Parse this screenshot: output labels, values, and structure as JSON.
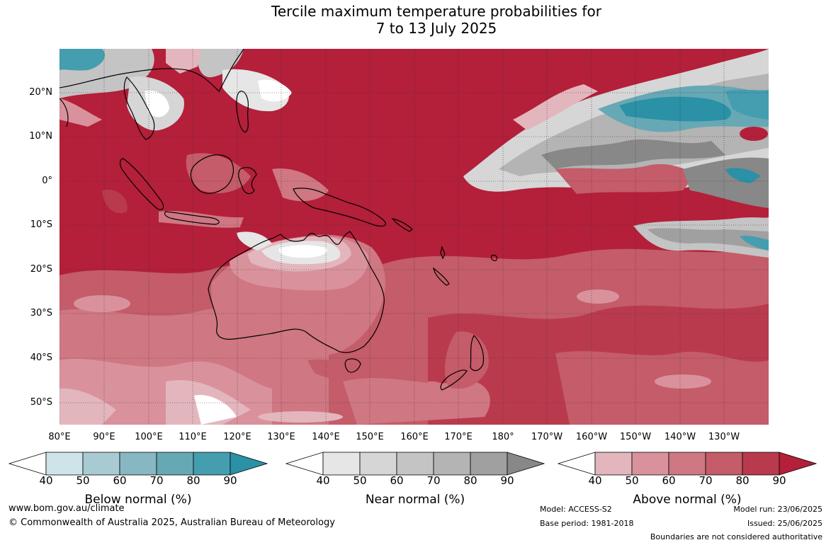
{
  "title_line1": "Tercile maximum temperature probabilities for",
  "title_line2": "7 to 13 July 2025",
  "lat_labels": [
    "20°N",
    "10°N",
    "0°",
    "10°S",
    "20°S",
    "30°S",
    "40°S",
    "50°S"
  ],
  "lon_labels": [
    "80°E",
    "90°E",
    "100°E",
    "110°E",
    "120°E",
    "130°E",
    "140°E",
    "150°E",
    "160°E",
    "170°E",
    "180°",
    "170°W",
    "160°W",
    "150°W",
    "140°W",
    "130°W"
  ],
  "colorbars": [
    {
      "title": "Below normal (%)",
      "ticks": [
        "40",
        "50",
        "60",
        "70",
        "80",
        "90"
      ],
      "colors": [
        "#ffffff",
        "#cfe4ea",
        "#a8cbd3",
        "#87b7c2",
        "#67a8b5",
        "#449eaf",
        "#2a91a6"
      ]
    },
    {
      "title": "Near normal (%)",
      "ticks": [
        "40",
        "50",
        "60",
        "70",
        "80",
        "90"
      ],
      "colors": [
        "#ffffff",
        "#e6e6e6",
        "#d6d6d6",
        "#c4c4c4",
        "#b4b4b4",
        "#a0a0a0",
        "#888888"
      ]
    },
    {
      "title": "Above normal (%)",
      "ticks": [
        "40",
        "50",
        "60",
        "70",
        "80",
        "90"
      ],
      "colors": [
        "#ffffff",
        "#e3b6be",
        "#d9929c",
        "#cf7782",
        "#c45c69",
        "#ba3a4d",
        "#b41f3a"
      ]
    }
  ],
  "footer": {
    "website": "www.bom.gov.au/climate",
    "copyright": "© Commonwealth of Australia 2025, Australian Bureau of Meteorology",
    "model": "Model: ACCESS-S2",
    "base_period": "Base period: 1981-2018",
    "model_run": "Model run: 23/06/2025",
    "issued": "Issued: 25/06/2025",
    "disclaimer": "Boundaries are not considered authoritative"
  }
}
